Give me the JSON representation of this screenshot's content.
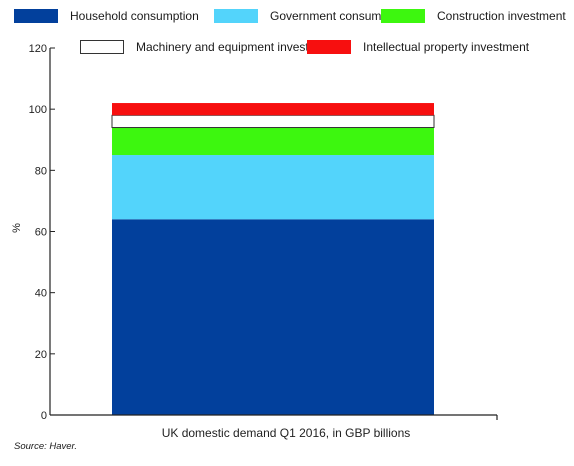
{
  "legend": [
    {
      "label": "Household consumption",
      "color": "#02409c"
    },
    {
      "label": "Government consumption",
      "color": "#53d4fb"
    },
    {
      "label": "Construction investment",
      "color": "#3df70f"
    },
    {
      "label": "Machinery and equipment investment",
      "color": "#ffffff"
    },
    {
      "label": "Intellectual property investment",
      "color": "#f70f0f"
    }
  ],
  "source": "Source: Haver.",
  "chart_data": {
    "type": "bar",
    "stacked": true,
    "categories": [
      "UK domestic demand Q1 2016, in GBP billions"
    ],
    "series": [
      {
        "name": "Household consumption",
        "values": [
          64
        ],
        "color": "#02409c"
      },
      {
        "name": "Government consumption",
        "values": [
          21
        ],
        "color": "#53d4fb"
      },
      {
        "name": "Construction investment",
        "values": [
          9
        ],
        "color": "#3df70f"
      },
      {
        "name": "Machinery and equipment investment",
        "values": [
          4
        ],
        "color": "#ffffff"
      },
      {
        "name": "Intellectual property investment",
        "values": [
          4
        ],
        "color": "#f70f0f"
      }
    ],
    "ylabel": "%",
    "xlabel": "UK domestic demand Q1 2016, in GBP billions",
    "ylim": [
      0,
      120
    ],
    "yticks": [
      0,
      20,
      40,
      60,
      80,
      100,
      120
    ],
    "legend_position": "top",
    "grid": false
  }
}
